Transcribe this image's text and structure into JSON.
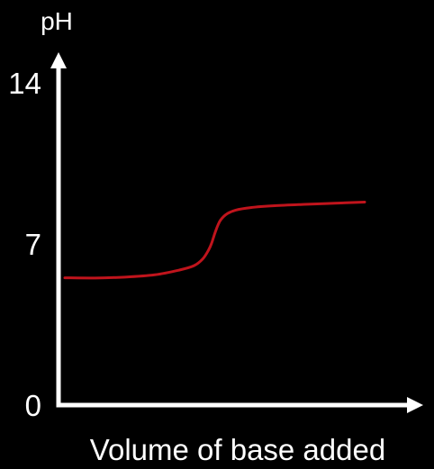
{
  "chart_data": {
    "type": "line",
    "title": "",
    "ylabel": "pH",
    "xlabel": "Volume of base added",
    "ylim": [
      0,
      14
    ],
    "y_ticks": [
      "0",
      "7",
      "14"
    ],
    "y_tick_values": [
      0,
      7,
      14
    ],
    "xlim": [
      0,
      1
    ],
    "grid": false,
    "legend": "none",
    "series": [
      {
        "x": [
          0.0,
          0.1,
          0.2,
          0.3,
          0.38,
          0.43,
          0.46,
          0.48,
          0.49,
          0.5,
          0.51,
          0.52,
          0.54,
          0.57,
          0.62,
          0.7,
          0.8,
          0.9,
          1.0
        ],
        "y": [
          5.53,
          5.52,
          5.56,
          5.66,
          5.86,
          6.05,
          6.35,
          6.75,
          7.05,
          7.45,
          7.8,
          8.05,
          8.3,
          8.47,
          8.58,
          8.66,
          8.72,
          8.77,
          8.82
        ]
      }
    ],
    "colors": {
      "axis": "#ffffff",
      "line": "#c0141c",
      "background": "#000000"
    }
  }
}
